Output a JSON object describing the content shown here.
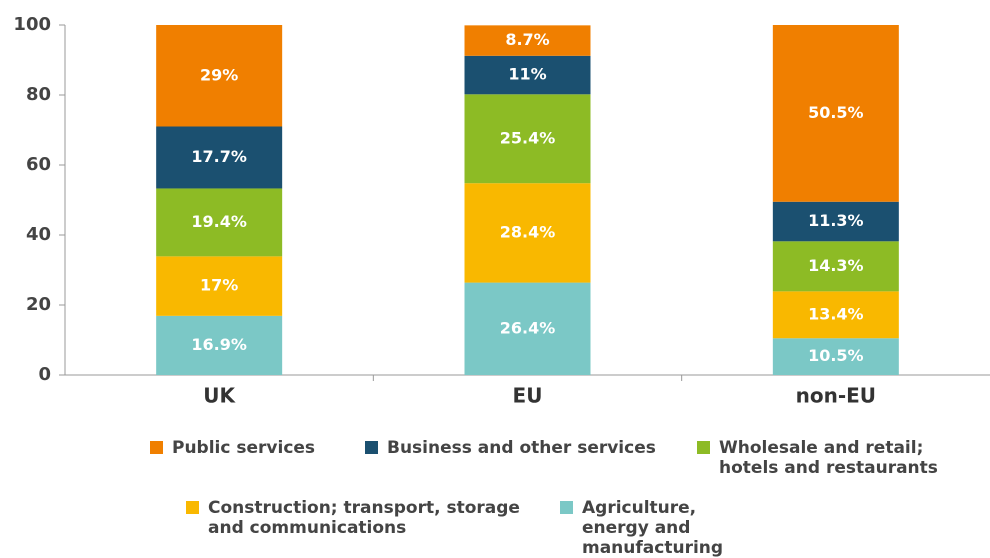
{
  "chart_data": {
    "type": "stacked_bar",
    "categories": [
      "UK",
      "EU",
      "non-EU"
    ],
    "series": [
      {
        "name": "Public services",
        "color": "#f07f00",
        "values": [
          29,
          8.7,
          50.5
        ],
        "value_labels": [
          "29%",
          "8.7%",
          "50.5%"
        ]
      },
      {
        "name": "Business and other services",
        "color": "#1b5070",
        "values": [
          17.7,
          11,
          11.3
        ],
        "value_labels": [
          "17.7%",
          "11%",
          "11.3%"
        ]
      },
      {
        "name": "Wholesale and retail; hotels and restaurants",
        "color": "#8dbb25",
        "values": [
          19.4,
          25.4,
          14.3
        ],
        "value_labels": [
          "19.4%",
          "25.4%",
          "14.3%"
        ]
      },
      {
        "name": "Construction; transport, storage and communications",
        "color": "#f9b800",
        "values": [
          17,
          28.4,
          13.4
        ],
        "value_labels": [
          "17%",
          "28.4%",
          "13.4%"
        ]
      },
      {
        "name": "Agriculture, energy and manufacturing",
        "color": "#7bc8c6",
        "values": [
          16.9,
          26.4,
          10.5
        ],
        "value_labels": [
          "16.9%",
          "26.4%",
          "10.5%"
        ]
      }
    ],
    "ylim": [
      0,
      100
    ],
    "yticks": [
      0,
      20,
      40,
      60,
      80,
      100
    ],
    "grid": false
  }
}
